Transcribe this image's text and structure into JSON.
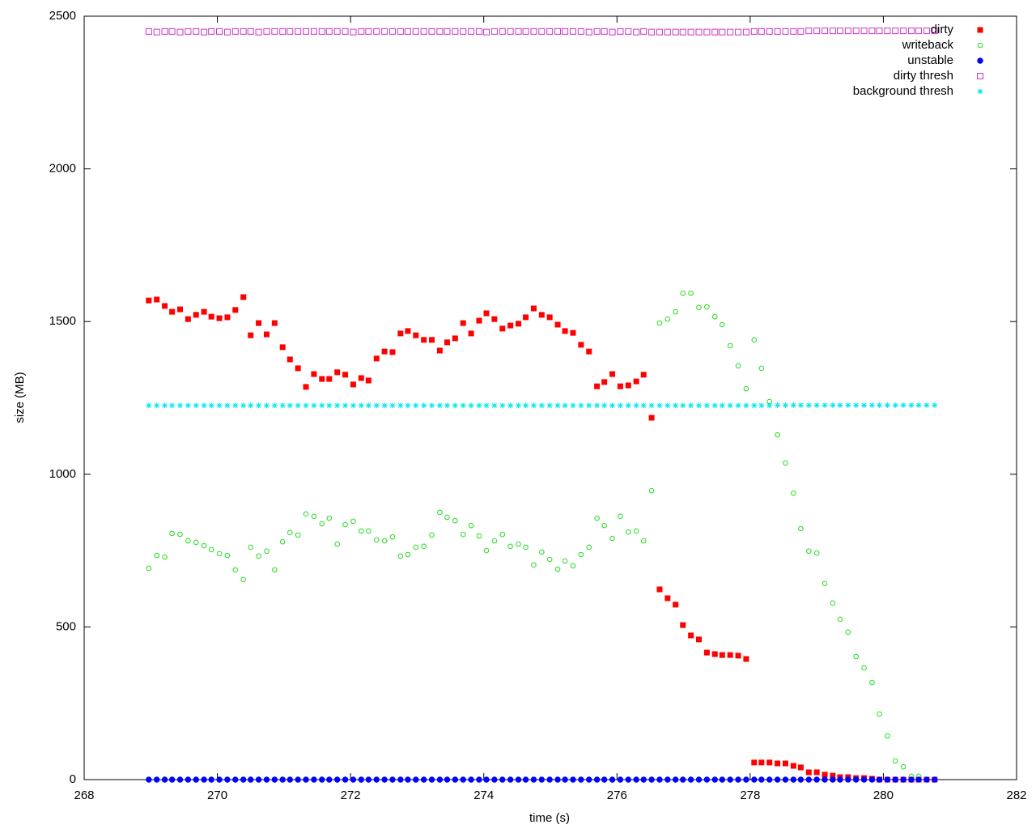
{
  "chart_data": {
    "type": "scatter",
    "xlabel": "time (s)",
    "ylabel": "size (MB)",
    "xlim": [
      268,
      282
    ],
    "xticks": [
      268,
      270,
      272,
      274,
      276,
      278,
      280,
      282
    ],
    "ylim": [
      0,
      2500
    ],
    "yticks": [
      0,
      500,
      1000,
      1500,
      2000,
      2500
    ],
    "grid": false,
    "legend": "top-right",
    "x": [
      268.97,
      269.09,
      269.21,
      269.32,
      269.44,
      269.56,
      269.68,
      269.8,
      269.91,
      270.03,
      270.15,
      270.27,
      270.39,
      270.5,
      270.62,
      270.74,
      270.86,
      270.98,
      271.09,
      271.21,
      271.33,
      271.45,
      271.57,
      271.68,
      271.8,
      271.92,
      272.04,
      272.16,
      272.27,
      272.39,
      272.51,
      272.63,
      272.75,
      272.86,
      272.98,
      273.1,
      273.22,
      273.34,
      273.45,
      273.57,
      273.69,
      273.81,
      273.93,
      274.04,
      274.16,
      274.28,
      274.4,
      274.52,
      274.63,
      274.75,
      274.87,
      274.99,
      275.11,
      275.22,
      275.34,
      275.46,
      275.58,
      275.7,
      275.81,
      275.93,
      276.05,
      276.17,
      276.29,
      276.4,
      276.52,
      276.64,
      276.76,
      276.88,
      276.99,
      277.11,
      277.23,
      277.35,
      277.47,
      277.58,
      277.7,
      277.82,
      277.94,
      278.06,
      278.17,
      278.29,
      278.41,
      278.53,
      278.65,
      278.76,
      278.88,
      279.0,
      279.12,
      279.24,
      279.35,
      279.47,
      279.59,
      279.71,
      279.83,
      279.94,
      280.06,
      280.18,
      280.3,
      280.42,
      280.53,
      280.65,
      280.77
    ],
    "series": [
      {
        "name": "dirty",
        "color": "#ff0000",
        "marker": "square",
        "filled": true,
        "values": [
          1569,
          1572,
          1551,
          1532,
          1540,
          1508,
          1522,
          1532,
          1516,
          1511,
          1514,
          1538,
          1580,
          1455,
          1495,
          1458,
          1495,
          1416,
          1376,
          1347,
          1286,
          1328,
          1312,
          1312,
          1334,
          1326,
          1294,
          1315,
          1307,
          1379,
          1402,
          1400,
          1461,
          1469,
          1455,
          1440,
          1440,
          1405,
          1432,
          1445,
          1495,
          1461,
          1503,
          1527,
          1508,
          1477,
          1487,
          1493,
          1514,
          1543,
          1522,
          1514,
          1490,
          1469,
          1463,
          1424,
          1402,
          1288,
          1302,
          1328,
          1288,
          1291,
          1304,
          1326,
          1185,
          623,
          594,
          573,
          506,
          472,
          459,
          416,
          411,
          408,
          408,
          406,
          395,
          56,
          56,
          56,
          53,
          53,
          45,
          40,
          24,
          24,
          16,
          13,
          8,
          8,
          5,
          5,
          3,
          0,
          0,
          0,
          0,
          0,
          0,
          0,
          0
        ]
      },
      {
        "name": "writeback",
        "color": "#22dd22",
        "marker": "circle",
        "filled": false,
        "values": [
          692,
          734,
          729,
          806,
          803,
          782,
          777,
          766,
          753,
          740,
          734,
          687,
          655,
          761,
          732,
          748,
          687,
          779,
          809,
          801,
          870,
          862,
          838,
          856,
          771,
          835,
          846,
          814,
          814,
          785,
          782,
          795,
          732,
          737,
          761,
          764,
          801,
          875,
          859,
          848,
          803,
          832,
          798,
          750,
          782,
          803,
          764,
          771,
          761,
          703,
          745,
          721,
          689,
          716,
          700,
          737,
          761,
          856,
          832,
          790,
          862,
          811,
          814,
          782,
          946,
          1495,
          1508,
          1532,
          1593,
          1593,
          1546,
          1548,
          1516,
          1490,
          1421,
          1355,
          1280,
          1440,
          1347,
          1238,
          1129,
          1037,
          938,
          822,
          748,
          742,
          642,
          578,
          525,
          483,
          403,
          366,
          318,
          215,
          143,
          61,
          42,
          11,
          11,
          null,
          null
        ]
      },
      {
        "name": "unstable",
        "color": "#0000ff",
        "marker": "circle",
        "filled": true,
        "values": [
          0,
          0,
          0,
          0,
          0,
          0,
          0,
          0,
          0,
          0,
          0,
          0,
          0,
          0,
          0,
          0,
          0,
          0,
          0,
          0,
          0,
          0,
          0,
          0,
          0,
          0,
          0,
          0,
          0,
          0,
          0,
          0,
          0,
          0,
          0,
          0,
          0,
          0,
          0,
          0,
          0,
          0,
          0,
          0,
          0,
          0,
          0,
          0,
          0,
          0,
          0,
          0,
          0,
          0,
          0,
          0,
          0,
          0,
          0,
          0,
          0,
          0,
          0,
          0,
          0,
          0,
          0,
          0,
          0,
          0,
          0,
          0,
          0,
          0,
          0,
          0,
          0,
          0,
          0,
          0,
          0,
          0,
          0,
          0,
          0,
          0,
          0,
          0,
          0,
          0,
          0,
          0,
          0,
          0,
          0,
          0,
          0,
          0,
          0,
          0,
          0
        ]
      },
      {
        "name": "dirty thresh",
        "color": "#cc33cc",
        "marker": "square",
        "filled": false,
        "values": [
          2450,
          2448,
          2450,
          2450,
          2448,
          2450,
          2450,
          2448,
          2450,
          2450,
          2448,
          2450,
          2450,
          2450,
          2448,
          2450,
          2450,
          2450,
          2450,
          2450,
          2450,
          2450,
          2450,
          2450,
          2450,
          2450,
          2448,
          2450,
          2450,
          2450,
          2450,
          2450,
          2450,
          2450,
          2450,
          2450,
          2450,
          2450,
          2450,
          2450,
          2450,
          2450,
          2450,
          2448,
          2450,
          2450,
          2450,
          2450,
          2450,
          2450,
          2450,
          2450,
          2450,
          2450,
          2450,
          2450,
          2448,
          2450,
          2450,
          2448,
          2450,
          2450,
          2448,
          2450,
          2448,
          2448,
          2448,
          2448,
          2448,
          2448,
          2448,
          2448,
          2448,
          2448,
          2448,
          2448,
          2448,
          2450,
          2450,
          2450,
          2450,
          2450,
          2450,
          2450,
          2452,
          2452,
          2452,
          2452,
          2452,
          2452,
          2452,
          2452,
          2452,
          2452,
          2452,
          2452,
          2452,
          2452,
          2452,
          2452,
          2452
        ]
      },
      {
        "name": "background thresh",
        "color": "#00e5ee",
        "marker": "star",
        "filled": false,
        "values": [
          1225,
          1225,
          1225,
          1225,
          1225,
          1225,
          1225,
          1225,
          1225,
          1225,
          1225,
          1225,
          1225,
          1225,
          1225,
          1225,
          1225,
          1225,
          1225,
          1225,
          1225,
          1225,
          1225,
          1225,
          1225,
          1225,
          1225,
          1225,
          1225,
          1225,
          1225,
          1225,
          1225,
          1225,
          1225,
          1225,
          1225,
          1225,
          1225,
          1225,
          1225,
          1225,
          1225,
          1225,
          1225,
          1225,
          1225,
          1225,
          1225,
          1225,
          1225,
          1225,
          1225,
          1225,
          1225,
          1225,
          1225,
          1225,
          1225,
          1225,
          1225,
          1225,
          1225,
          1225,
          1225,
          1225,
          1225,
          1225,
          1225,
          1225,
          1225,
          1225,
          1225,
          1225,
          1225,
          1225,
          1225,
          1225,
          1225,
          1225,
          1226,
          1226,
          1226,
          1226,
          1226,
          1226,
          1226,
          1226,
          1226,
          1226,
          1226,
          1226,
          1226,
          1226,
          1226,
          1226,
          1226,
          1226,
          1226,
          1226,
          1226
        ]
      }
    ]
  }
}
